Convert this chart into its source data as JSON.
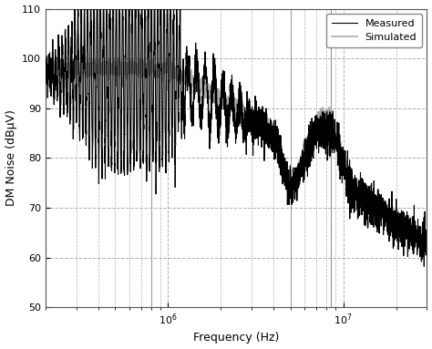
{
  "title": "",
  "xlabel": "Frequency (Hz)",
  "ylabel": "DM Noise (dBμV)",
  "xlim_log": [
    200000,
    30000000
  ],
  "ylim": [
    50,
    110
  ],
  "yticks": [
    50,
    60,
    70,
    80,
    90,
    100,
    110
  ],
  "legend_labels": [
    "Measured",
    "Simulated"
  ],
  "measured_color": "#000000",
  "simulated_color": "#aaaaaa",
  "measured_lw": 0.8,
  "simulated_lw": 1.2,
  "grid_color": "#b0b0b0",
  "grid_style": "--",
  "background_color": "#ffffff",
  "vlines_color": "#888888",
  "vlines": [
    800000,
    5000000,
    8500000
  ]
}
